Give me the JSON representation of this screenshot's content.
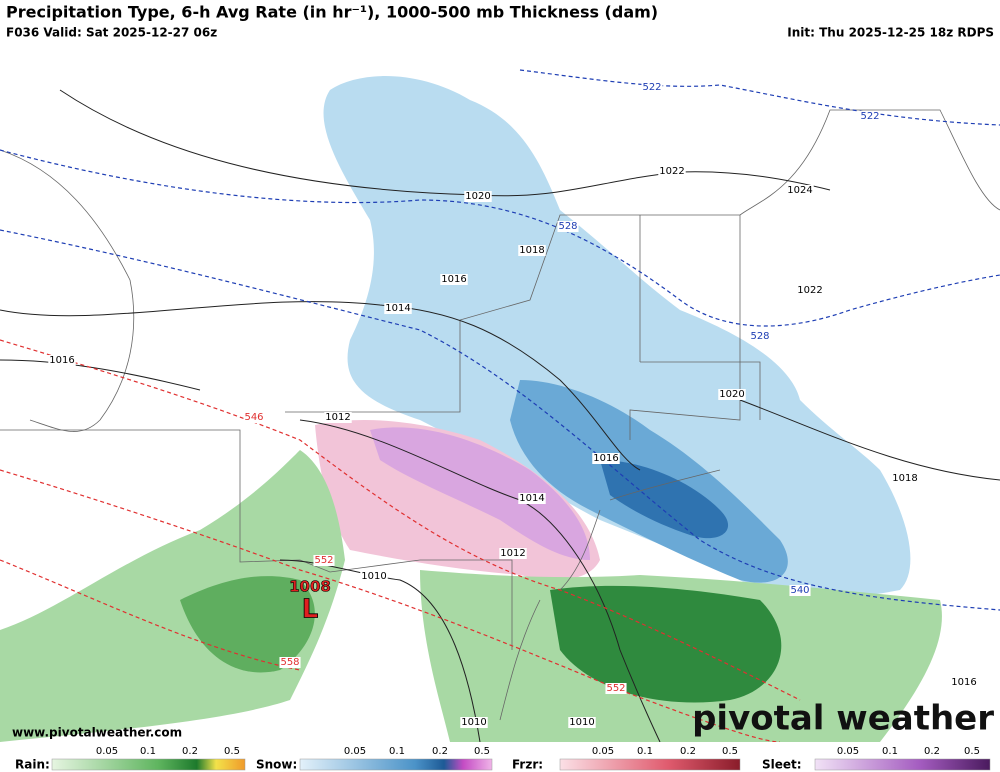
{
  "header": {
    "title": "Precipitation Type, 6-h Avg Rate (in hr⁻¹), 1000-500 mb Thickness (dam)",
    "valid": "F036 Valid: Sat 2025-12-27 06z",
    "init": "Init: Thu 2025-12-25 18z RDPS"
  },
  "map": {
    "isobar_labels": [
      "1022",
      "1024",
      "1020",
      "1018",
      "1016",
      "1014",
      "1016",
      "1012",
      "1016",
      "1014",
      "1012",
      "1010",
      "1020",
      "1022",
      "1018",
      "1016",
      "1010",
      "1010"
    ],
    "thickness_labels_blue": [
      "522",
      "522",
      "528",
      "528",
      "540"
    ],
    "thickness_labels_red": [
      "546",
      "552",
      "558",
      "552"
    ],
    "low": {
      "pressure": "1008",
      "symbol": "L"
    }
  },
  "footer": {
    "url": "www.pivotalweather.com",
    "watermark": "pivotal weather",
    "legends": [
      {
        "name": "Rain:",
        "ticks": [
          "0.05",
          "0.1",
          "0.2",
          "0.5"
        ]
      },
      {
        "name": "Snow:",
        "ticks": [
          "0.05",
          "0.1",
          "0.2",
          "0.5"
        ]
      },
      {
        "name": "Frzr:",
        "ticks": [
          "0.05",
          "0.1",
          "0.2",
          "0.5"
        ]
      },
      {
        "name": "Sleet:",
        "ticks": [
          "0.05",
          "0.1",
          "0.2",
          "0.5"
        ]
      }
    ]
  }
}
